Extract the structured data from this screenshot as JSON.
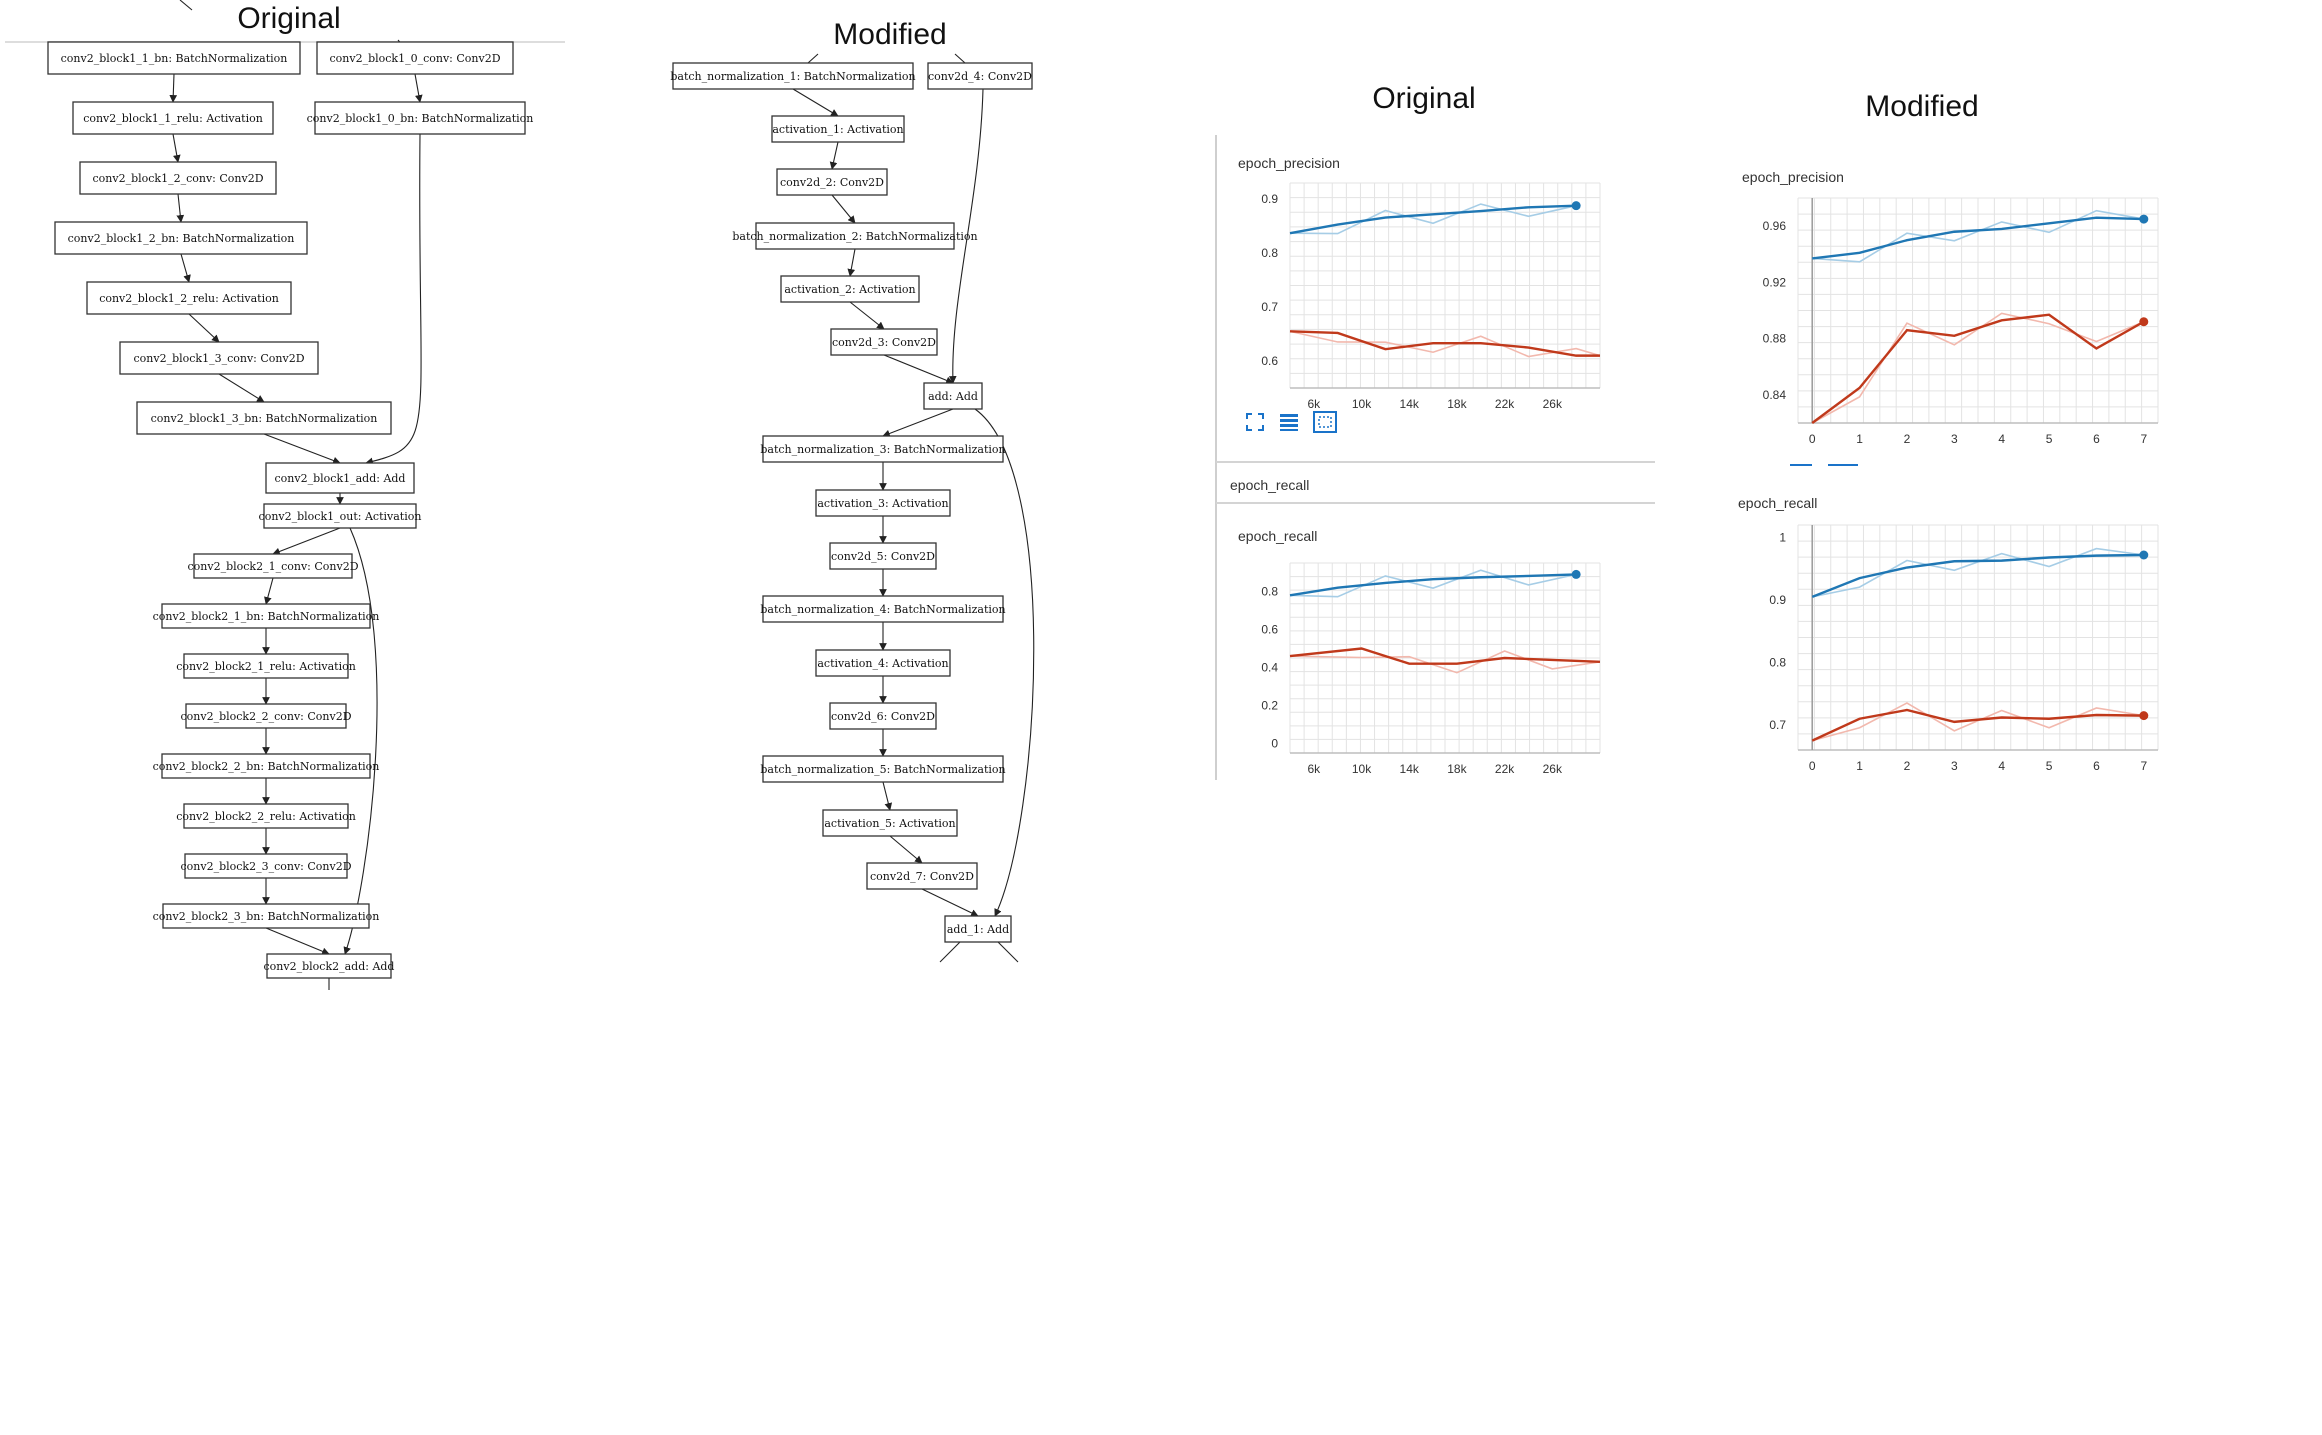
{
  "captions": {
    "left_original": "Original",
    "left_modified": "Modified",
    "right_original": "Original",
    "right_modified": "Modified"
  },
  "graph_original": {
    "nodes": [
      "conv2_block1_1_bn: BatchNormalization",
      "conv2_block1_0_conv: Conv2D",
      "conv2_block1_1_relu: Activation",
      "conv2_block1_0_bn: BatchNormalization",
      "conv2_block1_2_conv: Conv2D",
      "conv2_block1_2_bn: BatchNormalization",
      "conv2_block1_2_relu: Activation",
      "conv2_block1_3_conv: Conv2D",
      "conv2_block1_3_bn: BatchNormalization",
      "conv2_block1_add: Add",
      "conv2_block1_out: Activation",
      "conv2_block2_1_conv: Conv2D",
      "conv2_block2_1_bn: BatchNormalization",
      "conv2_block2_1_relu: Activation",
      "conv2_block2_2_conv: Conv2D",
      "conv2_block2_2_bn: BatchNormalization",
      "conv2_block2_2_relu: Activation",
      "conv2_block2_3_conv: Conv2D",
      "conv2_block2_3_bn: BatchNormalization",
      "conv2_block2_add: Add"
    ]
  },
  "graph_modified": {
    "nodes": [
      "batch_normalization_1: BatchNormalization",
      "conv2d_4: Conv2D",
      "activation_1: Activation",
      "conv2d_2: Conv2D",
      "batch_normalization_2: BatchNormalization",
      "activation_2: Activation",
      "conv2d_3: Conv2D",
      "add: Add",
      "batch_normalization_3: BatchNormalization",
      "activation_3: Activation",
      "conv2d_5: Conv2D",
      "batch_normalization_4: BatchNormalization",
      "activation_4: Activation",
      "conv2d_6: Conv2D",
      "batch_normalization_5: BatchNormalization",
      "activation_5: Activation",
      "conv2d_7: Conv2D",
      "add_1: Add"
    ]
  },
  "colors": {
    "blue": "#1f77b4",
    "blue_light": "#a6cde6",
    "red": "#c0391b",
    "red_light": "#f2b8ad",
    "accent": "#1a73c9"
  },
  "panel_labels": {
    "orig_precision_title": "epoch_precision",
    "orig_recall_header": "epoch_recall",
    "orig_recall_title": "epoch_recall",
    "mod_precision_title": "epoch_precision",
    "mod_recall_title": "epoch_recall"
  },
  "icons": [
    "expand-icon",
    "list-icon",
    "fit-icon"
  ],
  "chart_data": [
    {
      "type": "line",
      "title": "epoch_precision",
      "x_ticks": [
        "6k",
        "10k",
        "14k",
        "18k",
        "22k",
        "26k"
      ],
      "y_ticks": [
        "0.9",
        "0.8",
        "0.7",
        "0.6"
      ],
      "xlim": [
        4000,
        30000
      ],
      "ylim": [
        0.55,
        0.93
      ],
      "series": [
        {
          "color": "#1f77b4",
          "x": [
            4000,
            8000,
            12000,
            16000,
            20000,
            24000,
            28000
          ],
          "y": [
            0.837,
            0.853,
            0.866,
            0.872,
            0.878,
            0.885,
            0.888
          ]
        },
        {
          "color": "#c0391b",
          "x": [
            4000,
            8000,
            12000,
            16000,
            20000,
            24000,
            28000,
            30000
          ],
          "y": [
            0.655,
            0.652,
            0.622,
            0.633,
            0.633,
            0.625,
            0.61,
            0.61
          ]
        }
      ],
      "grid": true
    },
    {
      "type": "line",
      "title": "epoch_recall",
      "x_ticks": [
        "6k",
        "10k",
        "14k",
        "18k",
        "22k",
        "26k"
      ],
      "y_ticks": [
        "0.8",
        "0.6",
        "0.4",
        "0.2",
        "0"
      ],
      "xlim": [
        4000,
        30000
      ],
      "ylim": [
        -0.05,
        0.95
      ],
      "series": [
        {
          "color": "#1f77b4",
          "x": [
            4000,
            8000,
            12000,
            16000,
            20000,
            24000,
            28000
          ],
          "y": [
            0.78,
            0.82,
            0.845,
            0.865,
            0.875,
            0.882,
            0.89
          ]
        },
        {
          "color": "#c0391b",
          "x": [
            4000,
            10000,
            14000,
            18000,
            22000,
            26000,
            30000
          ],
          "y": [
            0.46,
            0.5,
            0.42,
            0.42,
            0.45,
            0.44,
            0.43
          ]
        }
      ],
      "grid": true
    },
    {
      "type": "line",
      "title": "epoch_precision",
      "x_ticks": [
        "0",
        "1",
        "2",
        "3",
        "4",
        "5",
        "6",
        "7"
      ],
      "y_ticks": [
        "0.96",
        "0.92",
        "0.88",
        "0.84"
      ],
      "xlim": [
        -0.3,
        7.3
      ],
      "ylim": [
        0.82,
        0.98
      ],
      "series": [
        {
          "color": "#1f77b4",
          "x": [
            0,
            1,
            2,
            3,
            4,
            5,
            6,
            7
          ],
          "y": [
            0.937,
            0.941,
            0.95,
            0.956,
            0.958,
            0.962,
            0.966,
            0.965
          ]
        },
        {
          "color": "#c0391b",
          "x": [
            0,
            1,
            2,
            3,
            4,
            5,
            6,
            7
          ],
          "y": [
            0.82,
            0.845,
            0.886,
            0.882,
            0.893,
            0.897,
            0.873,
            0.892
          ]
        }
      ],
      "grid": true
    },
    {
      "type": "line",
      "title": "epoch_recall",
      "x_ticks": [
        "0",
        "1",
        "2",
        "3",
        "4",
        "5",
        "6",
        "7"
      ],
      "y_ticks": [
        "1",
        "0.9",
        "0.8",
        "0.7"
      ],
      "xlim": [
        -0.3,
        7.3
      ],
      "ylim": [
        0.66,
        1.02
      ],
      "series": [
        {
          "color": "#1f77b4",
          "x": [
            0,
            1,
            2,
            3,
            4,
            5,
            6,
            7
          ],
          "y": [
            0.905,
            0.935,
            0.952,
            0.962,
            0.963,
            0.968,
            0.971,
            0.972
          ]
        },
        {
          "color": "#c0391b",
          "x": [
            0,
            1,
            2,
            3,
            4,
            5,
            6,
            7
          ],
          "y": [
            0.675,
            0.71,
            0.724,
            0.705,
            0.712,
            0.71,
            0.716,
            0.715
          ]
        }
      ],
      "grid": true
    }
  ]
}
